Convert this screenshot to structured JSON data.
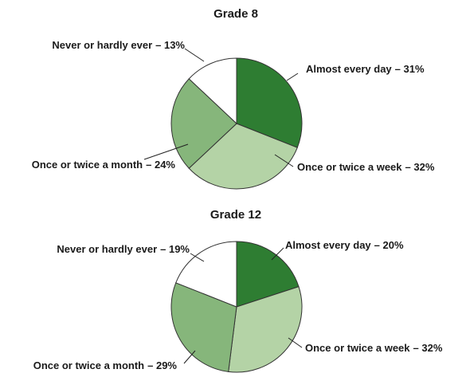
{
  "chart_data": [
    {
      "type": "pie",
      "title": "Grade 8",
      "categories": [
        "Almost every day",
        "Once or twice a week",
        "Once or twice a month",
        "Never or hardly ever"
      ],
      "values": [
        31,
        32,
        24,
        13
      ],
      "value_labels": [
        "– 31%",
        "– 32%",
        "– 24%",
        "– 13%"
      ],
      "colors": [
        "#2e7d32",
        "#b4d3a6",
        "#86b67b",
        "#ffffff"
      ]
    },
    {
      "type": "pie",
      "title": "Grade 12",
      "categories": [
        "Almost every day",
        "Once or twice a week",
        "Once or twice a month",
        "Never or hardly ever"
      ],
      "values": [
        20,
        32,
        29,
        19
      ],
      "value_labels": [
        "– 20%",
        "– 32%",
        "– 29%",
        "– 19%"
      ],
      "colors": [
        "#2e7d32",
        "#b4d3a6",
        "#86b67b",
        "#ffffff"
      ]
    }
  ]
}
